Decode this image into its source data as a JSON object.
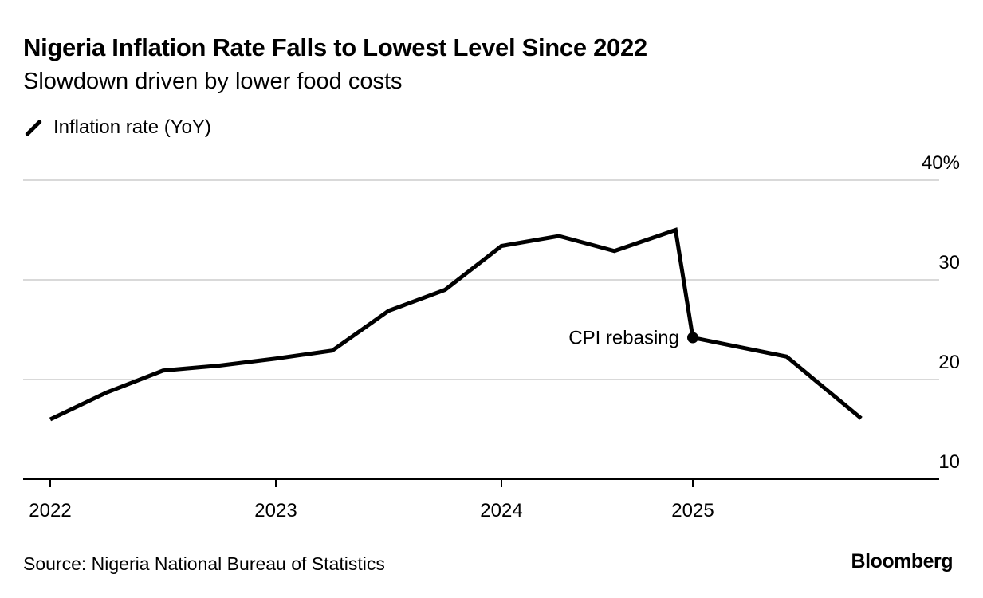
{
  "chart_data": {
    "type": "line",
    "title": "Nigeria Inflation Rate Falls to Lowest Level Since 2022",
    "subtitle": "Slowdown driven by lower food costs",
    "legend": [
      "Inflation rate (YoY)"
    ],
    "ylabel": "",
    "xlabel": "",
    "ylim": [
      10,
      40
    ],
    "yticks": [
      10,
      20,
      30,
      40
    ],
    "ytick_labels": [
      "10",
      "20",
      "30",
      "40%"
    ],
    "xticks": [
      2022,
      2023,
      2024,
      2025
    ],
    "xtick_labels": [
      "2022",
      "2023",
      "2024",
      "2025"
    ],
    "grid": true,
    "series": [
      {
        "name": "Inflation rate (YoY)",
        "x": [
          2022,
          2022.25,
          2022.5,
          2022.75,
          2023,
          2023.25,
          2023.5,
          2023.75,
          2024,
          2024.3,
          2024.59,
          2024.91,
          2025,
          2025.49,
          2025.88
        ],
        "y": [
          16.0,
          18.7,
          20.9,
          21.4,
          22.1,
          22.9,
          26.9,
          29.0,
          33.4,
          34.4,
          32.9,
          35.0,
          24.2,
          22.3,
          16.1
        ]
      }
    ],
    "annotations": [
      {
        "text": "CPI rebasing",
        "x": 2025,
        "y": 24.2
      }
    ],
    "source": "Source: Nigeria National Bureau of Statistics",
    "brand": "Bloomberg"
  }
}
